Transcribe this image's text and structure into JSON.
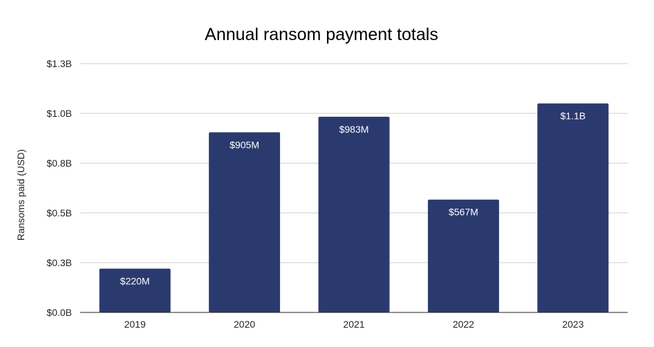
{
  "chart_data": {
    "type": "bar",
    "title": "Annual ransom payment totals",
    "xlabel": "",
    "ylabel": "Ransoms paid (USD)",
    "categories": [
      "2019",
      "2020",
      "2021",
      "2022",
      "2023"
    ],
    "values": [
      220,
      905,
      983,
      567,
      1050
    ],
    "value_unit": "million USD",
    "data_labels": [
      "$220M",
      "$905M",
      "$983M",
      "$567M",
      "$1.1B"
    ],
    "ylim": [
      0,
      1250
    ],
    "yticks": [
      {
        "value": 0,
        "label": "$0.0B"
      },
      {
        "value": 250,
        "label": "$0.3B"
      },
      {
        "value": 500,
        "label": "$0.5B"
      },
      {
        "value": 750,
        "label": "$0.8B"
      },
      {
        "value": 1000,
        "label": "$1.0B"
      },
      {
        "value": 1250,
        "label": "$1.3B"
      }
    ],
    "grid": true,
    "legend": "none",
    "colors": {
      "bar": "#2b3a6e",
      "grid": "#cccccc",
      "axis": "#222222"
    }
  }
}
